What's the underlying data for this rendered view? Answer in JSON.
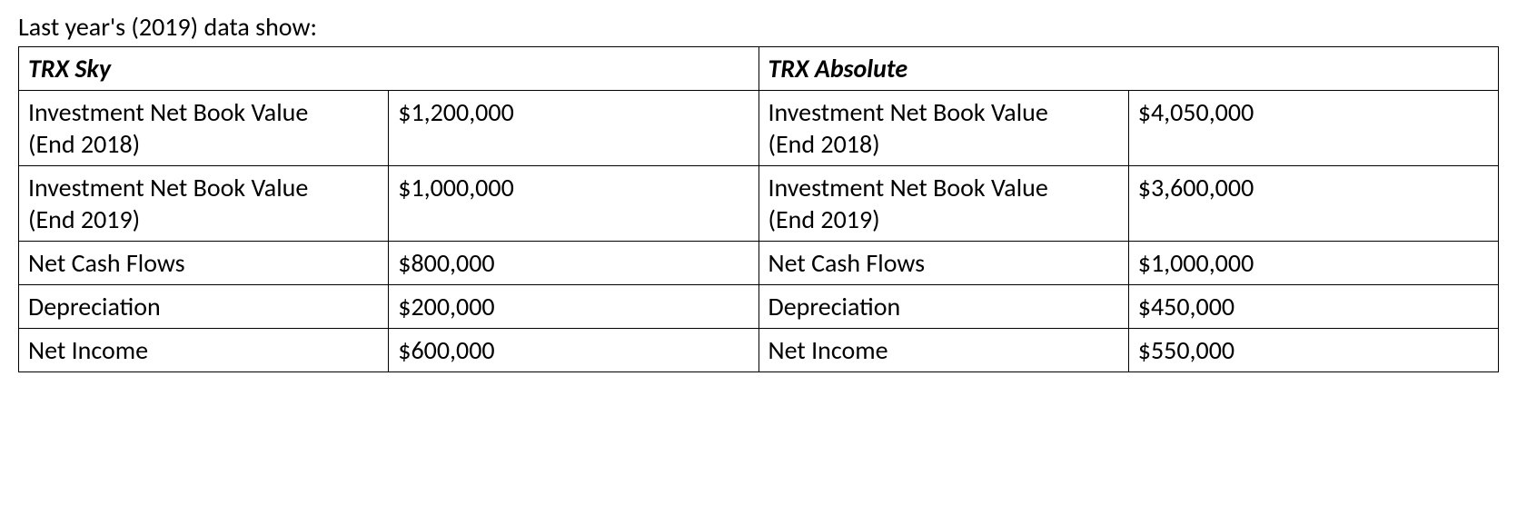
{
  "intro_text": "Last year's (2019) data show:",
  "table": {
    "type": "table",
    "border_color": "#000000",
    "background_color": "#ffffff",
    "text_color": "#000000",
    "font_family": "Calibri",
    "font_size_pt": 21,
    "columns": [
      {
        "role": "label",
        "alignment": "justify"
      },
      {
        "role": "value",
        "alignment": "left"
      },
      {
        "role": "label",
        "alignment": "justify"
      },
      {
        "role": "value",
        "alignment": "left"
      }
    ],
    "headers": {
      "left": "TRX Sky",
      "right": "TRX Absolute"
    },
    "rows": [
      {
        "left_label": "Investment Net Book Value\n(End 2018)",
        "left_value": "$1,200,000",
        "right_label": "Investment Net Book Value\n(End 2018)",
        "right_value": "$4,050,000"
      },
      {
        "left_label": "Investment Net Book Value\n(End 2019)",
        "left_value": "$1,000,000",
        "right_label": "Investment Net Book Value\n(End 2019)",
        "right_value": "$3,600,000"
      },
      {
        "left_label": "Net Cash Flows",
        "left_value": "$800,000",
        "right_label": "Net Cash Flows",
        "right_value": "$1,000,000"
      },
      {
        "left_label": "Depreciation",
        "left_value": "$200,000",
        "right_label": "Depreciation",
        "right_value": "$450,000"
      },
      {
        "left_label": "Net Income",
        "left_value": "$600,000",
        "right_label": "Net Income",
        "right_value": "$550,000"
      }
    ]
  }
}
